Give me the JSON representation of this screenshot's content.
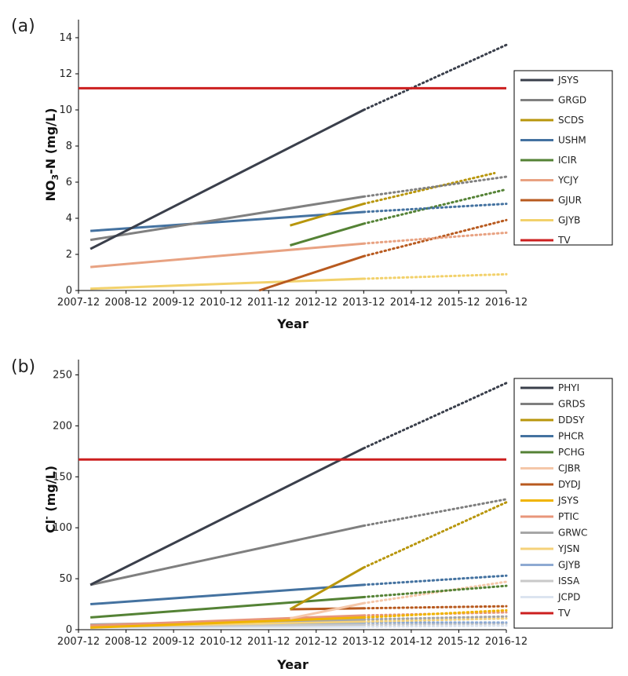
{
  "chart_data": [
    {
      "type": "line",
      "panel_label": "(a)",
      "title": "",
      "xlabel": "Year",
      "ylabel_main": "NO",
      "ylabel_sub": "3",
      "ylabel_rest": "-N (mg/L)",
      "x_ticks": [
        "2007-12",
        "2008-12",
        "2009-12",
        "2010-12",
        "2011-12",
        "2012-12",
        "2013-12",
        "2014-12",
        "2015-12",
        "2016-12"
      ],
      "xlim": [
        0,
        9
      ],
      "ylim": [
        0,
        15
      ],
      "y_ticks": [
        0,
        2,
        4,
        6,
        8,
        10,
        12,
        14
      ],
      "grid": false,
      "legend_position": "right",
      "threshold": {
        "name": "TV",
        "value": 11.2,
        "color": "#cc1f1f"
      },
      "series": [
        {
          "name": "JSYS",
          "color": "#3a3f4b",
          "x": [
            0.25,
            6.0
          ],
          "y": [
            2.3,
            10.0
          ],
          "projection": [
            9.0,
            13.6
          ]
        },
        {
          "name": "GRGD",
          "color": "#808080",
          "x": [
            0.25,
            6.0
          ],
          "y": [
            2.8,
            5.2
          ],
          "projection": [
            9.0,
            6.3
          ]
        },
        {
          "name": "SCDS",
          "color": "#b8960c",
          "x": [
            4.45,
            6.0
          ],
          "y": [
            3.6,
            4.8
          ],
          "projection": [
            8.75,
            6.5
          ]
        },
        {
          "name": "USHM",
          "color": "#4472a0",
          "x": [
            0.25,
            6.0
          ],
          "y": [
            3.3,
            4.35
          ],
          "projection": [
            9.0,
            4.8
          ]
        },
        {
          "name": "ICIR",
          "color": "#548235",
          "x": [
            4.45,
            6.0
          ],
          "y": [
            2.5,
            3.7
          ],
          "projection": [
            9.0,
            5.6
          ]
        },
        {
          "name": "YCJY",
          "color": "#e8a282",
          "x": [
            0.25,
            6.0
          ],
          "y": [
            1.3,
            2.6
          ],
          "projection": [
            9.0,
            3.2
          ]
        },
        {
          "name": "GJUR",
          "color": "#b85a1f",
          "x": [
            3.8,
            6.0
          ],
          "y": [
            0.0,
            1.9
          ],
          "projection": [
            9.0,
            3.9
          ]
        },
        {
          "name": "GJYB",
          "color": "#f2d16b",
          "x": [
            0.25,
            6.0
          ],
          "y": [
            0.1,
            0.65
          ],
          "projection": [
            9.0,
            0.9
          ]
        }
      ]
    },
    {
      "type": "line",
      "panel_label": "(b)",
      "title": "",
      "xlabel": "Year",
      "ylabel_main": "Cl",
      "ylabel_sup": "-",
      "ylabel_rest": " (mg/L)",
      "x_ticks": [
        "2007-12",
        "2008-12",
        "2009-12",
        "2010-12",
        "2011-12",
        "2012-12",
        "2013-12",
        "2014-12",
        "2015-12",
        "2016-12"
      ],
      "xlim": [
        0,
        9
      ],
      "ylim": [
        0,
        265
      ],
      "y_ticks": [
        0,
        50,
        100,
        150,
        200,
        250
      ],
      "grid": false,
      "legend_position": "right",
      "threshold": {
        "name": "TV",
        "value": 167,
        "color": "#cc1f1f"
      },
      "series": [
        {
          "name": "PHYI",
          "color": "#3a3f4b",
          "x": [
            0.25,
            6.0
          ],
          "y": [
            44,
            178
          ],
          "projection": [
            9.0,
            242
          ]
        },
        {
          "name": "GRDS",
          "color": "#7f7f7f",
          "x": [
            0.25,
            6.0
          ],
          "y": [
            44,
            102
          ],
          "projection": [
            9.0,
            128
          ]
        },
        {
          "name": "DDSY",
          "color": "#b8960c",
          "x": [
            4.45,
            6.0
          ],
          "y": [
            20,
            61
          ],
          "projection": [
            9.0,
            125
          ]
        },
        {
          "name": "PHCR",
          "color": "#4472a0",
          "x": [
            0.25,
            6.0
          ],
          "y": [
            25,
            44
          ],
          "projection": [
            9.0,
            53
          ]
        },
        {
          "name": "PCHG",
          "color": "#548235",
          "x": [
            0.25,
            6.0
          ],
          "y": [
            12,
            32
          ],
          "projection": [
            9.0,
            43
          ]
        },
        {
          "name": "CJBR",
          "color": "#f5c7a9",
          "x": [
            4.45,
            6.0
          ],
          "y": [
            11,
            26
          ],
          "projection": [
            9.0,
            47
          ]
        },
        {
          "name": "DYDJ",
          "color": "#b85a1f",
          "x": [
            4.45,
            6.0
          ],
          "y": [
            20,
            21
          ],
          "projection": [
            9.0,
            23
          ]
        },
        {
          "name": "JSYS",
          "color": "#f0b400",
          "x": [
            0.25,
            6.0
          ],
          "y": [
            2,
            12
          ],
          "projection": [
            9.0,
            19
          ]
        },
        {
          "name": "PTIC",
          "color": "#e8967a",
          "x": [
            0.25,
            6.0
          ],
          "y": [
            4,
            14
          ],
          "projection": [
            9.0,
            17
          ]
        },
        {
          "name": "GRWC",
          "color": "#a6a6a6",
          "x": [
            0.25,
            6.0
          ],
          "y": [
            5,
            10
          ],
          "projection": [
            9.0,
            13
          ]
        },
        {
          "name": "YJSN",
          "color": "#f5d27a",
          "x": [
            0.25,
            6.0
          ],
          "y": [
            3,
            8
          ],
          "projection": [
            9.0,
            11
          ]
        },
        {
          "name": "GJYB",
          "color": "#8eaad2",
          "x": [
            0.25,
            6.0
          ],
          "y": [
            5,
            7
          ],
          "projection": [
            9.0,
            7
          ]
        },
        {
          "name": "ISSA",
          "color": "#c9c9c9",
          "x": [
            0.25,
            6.0
          ],
          "y": [
            3,
            5
          ],
          "projection": [
            9.0,
            6
          ]
        },
        {
          "name": "JCPD",
          "color": "#dce4f0",
          "x": [
            0.25,
            6.0
          ],
          "y": [
            2,
            3
          ],
          "projection": [
            9.0,
            4
          ]
        }
      ]
    }
  ]
}
